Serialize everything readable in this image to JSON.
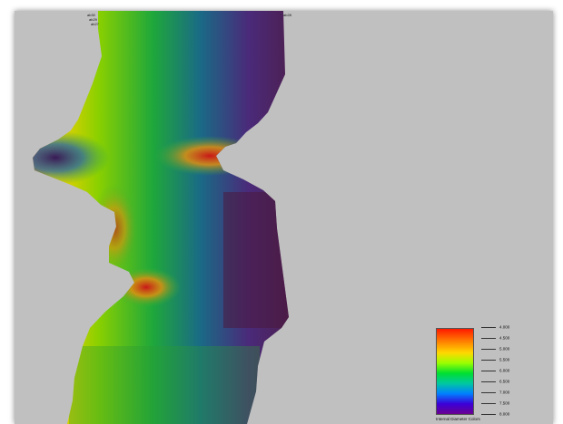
{
  "legend": {
    "title": "Internal Diameter Colors",
    "ticks": [
      "4.000",
      "4.500",
      "5.000",
      "5.500",
      "6.000",
      "6.500",
      "7.000",
      "7.500",
      "8.000"
    ]
  },
  "annotations": {
    "top_left_line1": "ab30",
    "top_left_line2": "ab29",
    "top_left_line3": "ab27",
    "top_right": "ab28"
  },
  "colors": {
    "background": "#c0c0c0",
    "scale": [
      "#ff1a00",
      "#ff7a00",
      "#ffd800",
      "#9bff00",
      "#00e030",
      "#00c8a0",
      "#0080ff",
      "#3b00d8",
      "#6a0090"
    ]
  }
}
